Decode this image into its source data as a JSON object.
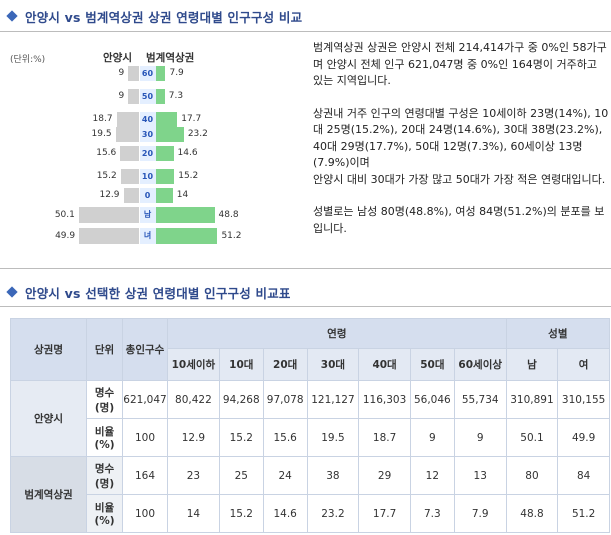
{
  "section1": {
    "title": "안양시 vs 범계역상권 상권 연령대별 인구구성 비교",
    "unit_label": "(단위:%)",
    "left_name": "안양시",
    "right_name": "범계역상권"
  },
  "pyramid": {
    "rows": [
      {
        "age": "60",
        "left": 9,
        "right": 7.9,
        "left_text": "9",
        "right_text": "7.9"
      },
      {
        "age": "50",
        "left": 9,
        "right": 7.3,
        "left_text": "9",
        "right_text": "7.3"
      },
      {
        "age": "40",
        "left": 18.7,
        "right": 17.7,
        "left_text": "18.7",
        "right_text": "17.7"
      },
      {
        "age": "30",
        "left": 19.5,
        "right": 23.2,
        "left_text": "19.5",
        "right_text": "23.2"
      },
      {
        "age": "20",
        "left": 15.6,
        "right": 14.6,
        "left_text": "15.6",
        "right_text": "14.6"
      },
      {
        "age": "10",
        "left": 15.2,
        "right": 15.2,
        "left_text": "15.2",
        "right_text": "15.2"
      },
      {
        "age": "0",
        "left": 12.9,
        "right": 14,
        "left_text": "12.9",
        "right_text": "14"
      },
      {
        "age": "남",
        "left": 50.1,
        "right": 48.8,
        "left_text": "50.1",
        "right_text": "48.8"
      },
      {
        "age": "녀",
        "left": 49.9,
        "right": 51.2,
        "left_text": "49.9",
        "right_text": "51.2"
      }
    ]
  },
  "description": {
    "p1": "범계역상권 상권은 안양시 전체 214,414가구 중 0%인 58가구며 안양시 전체 인구 621,047명 중 0%인 164명이 거주하고 있는 지역입니다.",
    "p2": "상권내 거주 인구의 연령대별 구성은 10세이하 23명(14%), 10대 25명(15.2%), 20대 24명(14.6%), 30대 38명(23.2%), 40대 29명(17.7%), 50대 12명(7.3%), 60세이상 13명(7.9%)이며",
    "p3": "안양시 대비 30대가 가장 많고 50대가 가장 적은 연령대입니다.",
    "p4": "성별로는 남성 80명(48.8%), 여성 84명(51.2%)의 분포를 보입니다."
  },
  "section2": {
    "title": "안양시 vs 선택한 상권 연령대별 인구구성 비교표"
  },
  "table": {
    "h_area": "상권명",
    "h_unit": "단위",
    "h_total": "총인구수",
    "h_age": "연령",
    "h_gender": "성별",
    "age_cols": [
      "10세이하",
      "10대",
      "20대",
      "30대",
      "40대",
      "50대",
      "60세이상"
    ],
    "gender_cols": [
      "남",
      "여"
    ],
    "groups": [
      {
        "name": "안양시",
        "rows": [
          {
            "unit": "명수(명)",
            "values": [
              "621,047",
              "80,422",
              "94,268",
              "97,078",
              "121,127",
              "116,303",
              "56,046",
              "55,734",
              "310,891",
              "310,155"
            ]
          },
          {
            "unit": "비율(%)",
            "values": [
              "100",
              "12.9",
              "15.2",
              "15.6",
              "19.5",
              "18.7",
              "9",
              "9",
              "50.1",
              "49.9"
            ]
          }
        ]
      },
      {
        "name": "범계역상권",
        "rows": [
          {
            "unit": "명수(명)",
            "values": [
              "164",
              "23",
              "25",
              "24",
              "38",
              "29",
              "12",
              "13",
              "80",
              "84"
            ]
          },
          {
            "unit": "비율(%)",
            "values": [
              "100",
              "14",
              "15.2",
              "14.6",
              "23.2",
              "17.7",
              "7.3",
              "7.9",
              "48.8",
              "51.2"
            ]
          }
        ]
      }
    ]
  },
  "colors": {
    "left_bar": "#d0d0d0",
    "right_bar": "#7fd48b",
    "title": "#2f4a8c",
    "table_header": "#d5deee"
  }
}
